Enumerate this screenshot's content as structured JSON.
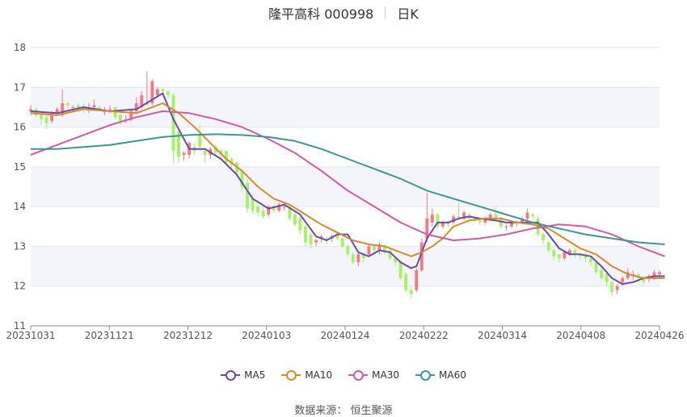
{
  "header": {
    "title": "隆平高科 000998",
    "period": "日K"
  },
  "source": "数据来源： 恒生聚源",
  "chart_data": {
    "type": "candlestick",
    "ylim": [
      11,
      18
    ],
    "yticks": [
      11,
      12,
      13,
      14,
      15,
      16,
      17,
      18
    ],
    "xtick_labels": [
      "20231031",
      "20231121",
      "20231212",
      "20240103",
      "20240124",
      "20240222",
      "20240314",
      "20240408",
      "20240426"
    ],
    "up_color": "#f07b85",
    "down_color": "#a6f06a",
    "candles": {
      "open": [
        16.4,
        16.45,
        16.3,
        16.25,
        16.15,
        16.35,
        16.3,
        16.6,
        16.5,
        16.55,
        16.5,
        16.45,
        16.5,
        16.5,
        16.4,
        16.45,
        16.5,
        16.3,
        16.2,
        16.2,
        16.4,
        16.5,
        16.6,
        16.6,
        16.8,
        16.95,
        16.9,
        16.8,
        15.9,
        15.3,
        15.3,
        15.5,
        15.8,
        15.4,
        15.3,
        15.5,
        15.4,
        15.4,
        15.2,
        15.1,
        14.9,
        14.6,
        14.2,
        14.0,
        13.9,
        13.8,
        14.0,
        13.9,
        14.0,
        14.0,
        13.8,
        13.7,
        13.5,
        13.3,
        13.1,
        13.2,
        13.2,
        13.2,
        13.3,
        13.2,
        13.0,
        12.8,
        12.6,
        12.8,
        12.8,
        13.0,
        12.9,
        13.0,
        12.9,
        12.7,
        12.6,
        12.3,
        11.9,
        11.9,
        12.4,
        13.2,
        13.6,
        13.8,
        13.5,
        13.6,
        13.6,
        13.75,
        13.7,
        13.8,
        13.7,
        13.65,
        13.6,
        13.7,
        13.8,
        13.7,
        13.5,
        13.5,
        13.6,
        13.6,
        13.7,
        13.8,
        13.7,
        13.3,
        13.1,
        12.9,
        12.8,
        12.7,
        12.8,
        12.9,
        12.8,
        12.8,
        12.7,
        12.6,
        12.4,
        12.3,
        12.1,
        11.9,
        12.1,
        12.2,
        12.3,
        12.3,
        12.2,
        12.2,
        12.2,
        12.3
      ],
      "close": [
        16.45,
        16.3,
        16.2,
        16.1,
        16.35,
        16.45,
        16.6,
        16.55,
        16.5,
        16.45,
        16.45,
        16.5,
        16.55,
        16.45,
        16.4,
        16.45,
        16.25,
        16.15,
        16.2,
        16.4,
        16.6,
        16.8,
        16.6,
        17.15,
        16.95,
        16.9,
        16.8,
        15.4,
        15.25,
        15.35,
        15.6,
        15.4,
        15.5,
        15.3,
        15.45,
        15.35,
        15.3,
        15.1,
        15.05,
        14.85,
        14.5,
        13.95,
        13.9,
        13.85,
        13.75,
        14.0,
        13.9,
        14.05,
        14.0,
        13.7,
        13.55,
        13.4,
        13.1,
        13.05,
        13.15,
        13.25,
        13.15,
        13.25,
        13.2,
        13.0,
        12.8,
        12.6,
        12.8,
        12.7,
        13.0,
        12.9,
        13.05,
        12.85,
        12.7,
        12.6,
        12.2,
        11.9,
        11.8,
        12.4,
        13.1,
        13.7,
        13.8,
        13.5,
        13.6,
        13.55,
        13.75,
        13.7,
        13.85,
        13.7,
        13.65,
        13.6,
        13.7,
        13.8,
        13.7,
        13.5,
        13.5,
        13.6,
        13.6,
        13.7,
        13.85,
        13.75,
        13.3,
        13.15,
        12.9,
        12.75,
        12.7,
        12.85,
        12.9,
        12.8,
        12.75,
        12.7,
        12.6,
        12.35,
        12.2,
        12.1,
        11.85,
        12.0,
        12.2,
        12.35,
        12.3,
        12.2,
        12.1,
        12.25,
        12.35,
        12.35
      ],
      "high": [
        16.55,
        16.5,
        16.35,
        16.3,
        16.4,
        16.5,
        16.95,
        16.65,
        16.55,
        16.6,
        16.6,
        16.6,
        16.7,
        16.55,
        16.5,
        16.55,
        16.5,
        16.35,
        16.3,
        16.45,
        16.75,
        16.9,
        17.4,
        17.2,
        17.0,
        17.0,
        16.9,
        16.85,
        15.95,
        15.4,
        15.65,
        15.6,
        16.05,
        15.5,
        15.5,
        15.55,
        15.45,
        15.4,
        15.25,
        15.15,
        14.95,
        14.7,
        14.3,
        14.05,
        14.0,
        14.05,
        14.05,
        14.1,
        14.1,
        14.05,
        13.85,
        13.75,
        13.55,
        13.35,
        13.2,
        13.3,
        13.25,
        13.3,
        13.35,
        13.25,
        13.05,
        12.85,
        12.85,
        12.85,
        13.05,
        13.05,
        13.1,
        13.05,
        12.95,
        12.75,
        12.65,
        12.35,
        12.0,
        12.45,
        13.2,
        14.35,
        13.95,
        13.85,
        13.65,
        13.65,
        13.8,
        14.1,
        13.9,
        13.85,
        13.75,
        13.7,
        13.75,
        13.85,
        14.0,
        13.75,
        13.55,
        13.65,
        13.65,
        13.75,
        13.95,
        13.85,
        13.75,
        13.35,
        13.15,
        12.95,
        12.8,
        12.9,
        12.95,
        12.95,
        12.85,
        12.85,
        12.75,
        12.65,
        12.45,
        12.35,
        12.15,
        12.05,
        12.25,
        12.45,
        12.4,
        12.35,
        12.25,
        12.3,
        12.4,
        12.4
      ],
      "low": [
        16.3,
        16.25,
        16.05,
        15.95,
        16.1,
        16.3,
        16.25,
        16.45,
        16.4,
        16.4,
        16.35,
        16.35,
        16.45,
        16.4,
        16.3,
        16.35,
        16.2,
        16.05,
        16.1,
        16.15,
        16.35,
        16.45,
        16.55,
        16.55,
        16.75,
        16.8,
        16.7,
        15.1,
        15.1,
        15.15,
        15.2,
        15.3,
        15.4,
        15.1,
        15.2,
        15.25,
        15.2,
        15.05,
        14.95,
        14.75,
        14.4,
        13.85,
        13.8,
        13.75,
        13.7,
        13.75,
        13.85,
        13.85,
        13.9,
        13.65,
        13.5,
        13.3,
        13.0,
        12.95,
        13.0,
        13.1,
        13.05,
        13.1,
        13.15,
        12.95,
        12.75,
        12.55,
        12.5,
        12.6,
        12.75,
        12.8,
        12.8,
        12.8,
        12.65,
        12.5,
        12.15,
        11.85,
        11.7,
        11.85,
        12.35,
        13.1,
        13.5,
        13.45,
        13.45,
        13.5,
        13.55,
        13.65,
        13.65,
        13.6,
        13.6,
        13.55,
        13.55,
        13.65,
        13.65,
        13.45,
        13.4,
        13.45,
        13.5,
        13.55,
        13.65,
        13.7,
        13.25,
        13.05,
        12.85,
        12.65,
        12.6,
        12.65,
        12.75,
        12.7,
        12.65,
        12.6,
        12.5,
        12.3,
        12.15,
        12.0,
        11.75,
        11.8,
        12.0,
        12.15,
        12.15,
        12.1,
        12.05,
        12.1,
        12.15,
        12.2
      ]
    },
    "series": [
      {
        "name": "MA5",
        "color": "#6a4aab",
        "points": [
          [
            0,
            16.4
          ],
          [
            5,
            16.35
          ],
          [
            10,
            16.5
          ],
          [
            15,
            16.4
          ],
          [
            20,
            16.45
          ],
          [
            25,
            16.85
          ],
          [
            27,
            16.2
          ],
          [
            30,
            15.45
          ],
          [
            33,
            15.45
          ],
          [
            36,
            15.2
          ],
          [
            39,
            14.8
          ],
          [
            42,
            14.2
          ],
          [
            45,
            13.95
          ],
          [
            48,
            14.05
          ],
          [
            51,
            13.8
          ],
          [
            54,
            13.25
          ],
          [
            56,
            13.15
          ],
          [
            58,
            13.3
          ],
          [
            60,
            13.3
          ],
          [
            62,
            12.85
          ],
          [
            64,
            12.75
          ],
          [
            66,
            12.9
          ],
          [
            68,
            12.85
          ],
          [
            70,
            12.6
          ],
          [
            72,
            12.45
          ],
          [
            73,
            12.5
          ],
          [
            75,
            13.2
          ],
          [
            77,
            13.6
          ],
          [
            79,
            13.6
          ],
          [
            81,
            13.7
          ],
          [
            83,
            13.75
          ],
          [
            85,
            13.7
          ],
          [
            88,
            13.65
          ],
          [
            90,
            13.6
          ],
          [
            93,
            13.6
          ],
          [
            96,
            13.6
          ],
          [
            98,
            13.3
          ],
          [
            100,
            12.95
          ],
          [
            102,
            12.8
          ],
          [
            104,
            12.8
          ],
          [
            106,
            12.75
          ],
          [
            108,
            12.5
          ],
          [
            110,
            12.2
          ],
          [
            112,
            12.05
          ],
          [
            114,
            12.1
          ],
          [
            116,
            12.2
          ],
          [
            118,
            12.25
          ],
          [
            120,
            12.25
          ]
        ]
      },
      {
        "name": "MA10",
        "color": "#d9892f",
        "points": [
          [
            0,
            16.35
          ],
          [
            5,
            16.3
          ],
          [
            10,
            16.45
          ],
          [
            15,
            16.4
          ],
          [
            20,
            16.35
          ],
          [
            25,
            16.6
          ],
          [
            28,
            16.35
          ],
          [
            31,
            16.0
          ],
          [
            34,
            15.6
          ],
          [
            37,
            15.2
          ],
          [
            40,
            14.9
          ],
          [
            43,
            14.5
          ],
          [
            46,
            14.2
          ],
          [
            49,
            14.05
          ],
          [
            52,
            13.8
          ],
          [
            55,
            13.55
          ],
          [
            58,
            13.35
          ],
          [
            61,
            13.15
          ],
          [
            64,
            13.05
          ],
          [
            67,
            13.0
          ],
          [
            70,
            12.85
          ],
          [
            72,
            12.75
          ],
          [
            74,
            12.85
          ],
          [
            76,
            13.0
          ],
          [
            78,
            13.2
          ],
          [
            80,
            13.5
          ],
          [
            83,
            13.65
          ],
          [
            86,
            13.7
          ],
          [
            89,
            13.7
          ],
          [
            92,
            13.6
          ],
          [
            95,
            13.55
          ],
          [
            98,
            13.45
          ],
          [
            101,
            13.2
          ],
          [
            104,
            12.95
          ],
          [
            107,
            12.8
          ],
          [
            110,
            12.5
          ],
          [
            113,
            12.3
          ],
          [
            116,
            12.2
          ],
          [
            120,
            12.2
          ]
        ]
      },
      {
        "name": "MA30",
        "color": "#d05aa8",
        "points": [
          [
            0,
            15.3
          ],
          [
            5,
            15.55
          ],
          [
            10,
            15.8
          ],
          [
            15,
            16.05
          ],
          [
            20,
            16.25
          ],
          [
            25,
            16.4
          ],
          [
            30,
            16.35
          ],
          [
            35,
            16.2
          ],
          [
            40,
            16.0
          ],
          [
            45,
            15.7
          ],
          [
            50,
            15.35
          ],
          [
            55,
            14.9
          ],
          [
            60,
            14.4
          ],
          [
            65,
            14.0
          ],
          [
            70,
            13.6
          ],
          [
            75,
            13.3
          ],
          [
            80,
            13.15
          ],
          [
            85,
            13.2
          ],
          [
            90,
            13.3
          ],
          [
            95,
            13.45
          ],
          [
            100,
            13.55
          ],
          [
            105,
            13.5
          ],
          [
            110,
            13.3
          ],
          [
            115,
            13.0
          ],
          [
            120,
            12.75
          ]
        ]
      },
      {
        "name": "MA60",
        "color": "#3d9694",
        "points": [
          [
            0,
            15.45
          ],
          [
            5,
            15.45
          ],
          [
            10,
            15.5
          ],
          [
            15,
            15.55
          ],
          [
            20,
            15.65
          ],
          [
            25,
            15.75
          ],
          [
            30,
            15.8
          ],
          [
            35,
            15.82
          ],
          [
            40,
            15.8
          ],
          [
            45,
            15.75
          ],
          [
            50,
            15.65
          ],
          [
            55,
            15.45
          ],
          [
            60,
            15.2
          ],
          [
            65,
            14.95
          ],
          [
            70,
            14.7
          ],
          [
            75,
            14.4
          ],
          [
            80,
            14.2
          ],
          [
            85,
            14.0
          ],
          [
            90,
            13.8
          ],
          [
            95,
            13.6
          ],
          [
            100,
            13.45
          ],
          [
            105,
            13.3
          ],
          [
            110,
            13.2
          ],
          [
            115,
            13.1
          ],
          [
            120,
            13.05
          ]
        ]
      }
    ]
  }
}
